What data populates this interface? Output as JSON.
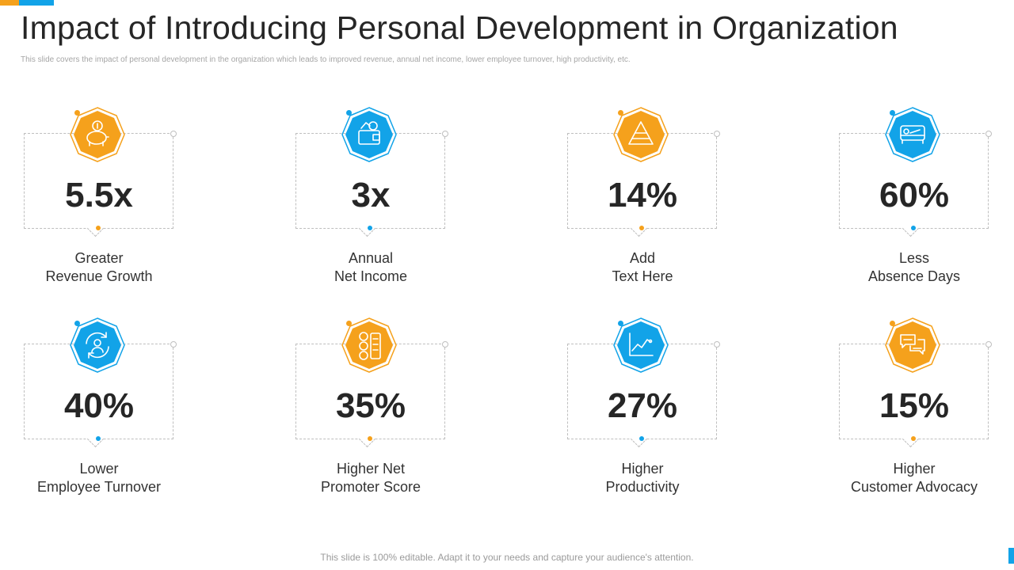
{
  "header": {
    "title": "Impact of Introducing Personal Development in Organization",
    "subtitle": "This slide covers the impact of personal development in the organization which leads to improved revenue, annual net income, lower employee turnover, high productivity, etc."
  },
  "footer": {
    "note": "This slide is 100% editable. Adapt it to your needs and capture your audience's attention."
  },
  "colors": {
    "orange": "#F5A11C",
    "blue": "#12A3E8",
    "text": "#262626"
  },
  "cards": [
    {
      "value": "5.5x",
      "label_line1": "Greater",
      "label_line2": "Revenue Growth",
      "icon": "piggy-bank-icon",
      "color": "#F5A11C"
    },
    {
      "value": "3x",
      "label_line1": "Annual",
      "label_line2": "Net Income",
      "icon": "wallet-money-icon",
      "color": "#12A3E8"
    },
    {
      "value": "14%",
      "label_line1": "Add",
      "label_line2": "Text Here",
      "icon": "pyramid-icon",
      "color": "#F5A11C"
    },
    {
      "value": "60%",
      "label_line1": "Less",
      "label_line2": "Absence Days",
      "icon": "bed-icon",
      "color": "#12A3E8"
    },
    {
      "value": "40%",
      "label_line1": "Lower",
      "label_line2": "Employee Turnover",
      "icon": "employee-cycle-icon",
      "color": "#12A3E8"
    },
    {
      "value": "35%",
      "label_line1": "Higher Net",
      "label_line2": "Promoter Score",
      "icon": "rating-faces-icon",
      "color": "#F5A11C"
    },
    {
      "value": "27%",
      "label_line1": "Higher",
      "label_line2": "Productivity",
      "icon": "line-chart-icon",
      "color": "#12A3E8"
    },
    {
      "value": "15%",
      "label_line1": "Higher",
      "label_line2": "Customer Advocacy",
      "icon": "chat-bubbles-icon",
      "color": "#F5A11C"
    }
  ]
}
